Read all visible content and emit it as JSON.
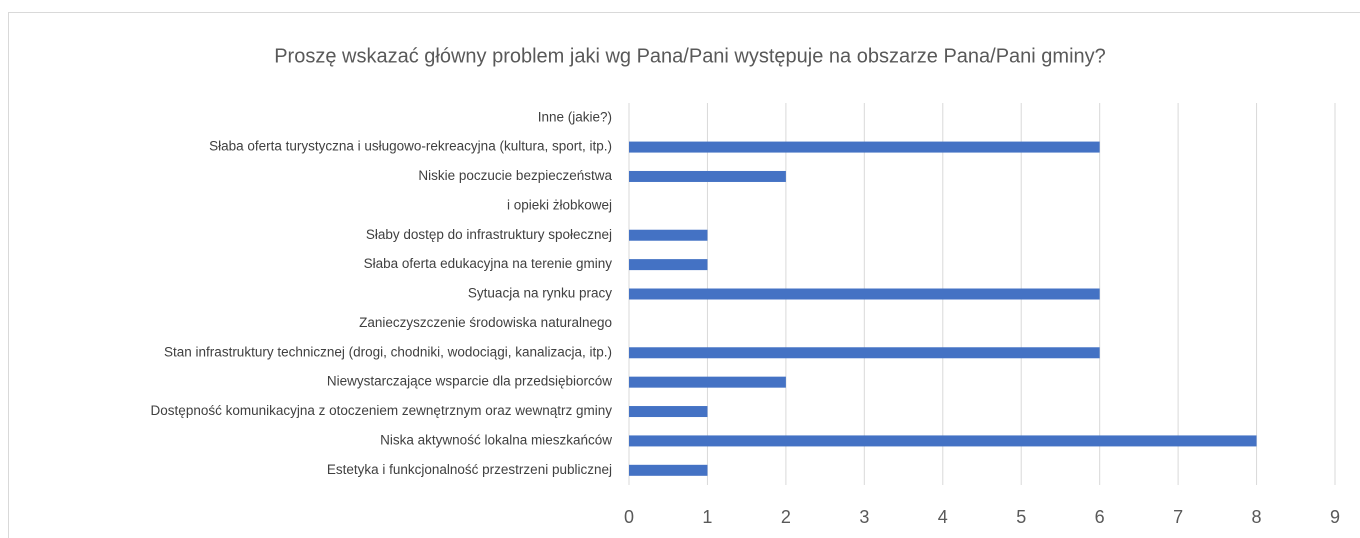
{
  "chart_data": {
    "type": "bar",
    "orientation": "horizontal",
    "title": "Proszę wskazać główny problem jaki wg Pana/Pani występuje na obszarze Pana/Pani gminy?",
    "categories": [
      "Estetyka i funkcjonalność przestrzeni publicznej",
      "Niska aktywność lokalna mieszkańców",
      "Dostępność komunikacyjna z otoczeniem zewnętrznym oraz wewnątrz gminy",
      "Niewystarczające wsparcie dla przedsiębiorców",
      "Stan infrastruktury technicznej  (drogi, chodniki, wodociągi, kanalizacja, itp.)",
      "Zanieczyszczenie środowiska naturalnego",
      "Sytuacja na rynku pracy",
      "Słaba oferta edukacyjna na terenie gminy",
      "Słaby dostęp do infrastruktury społecznej",
      "i opieki żłobkowej",
      "Niskie poczucie bezpieczeństwa",
      "Słaba oferta turystyczna i usługowo-rekreacyjna (kultura, sport, itp.)",
      "Inne (jakie?)"
    ],
    "values": [
      1,
      8,
      1,
      2,
      6,
      0,
      6,
      1,
      1,
      0,
      2,
      6,
      0
    ],
    "color": "#4472c4",
    "xlim": [
      0,
      9
    ],
    "xticks": [
      0,
      1,
      2,
      3,
      4,
      5,
      6,
      7,
      8,
      9
    ],
    "grid": true
  }
}
